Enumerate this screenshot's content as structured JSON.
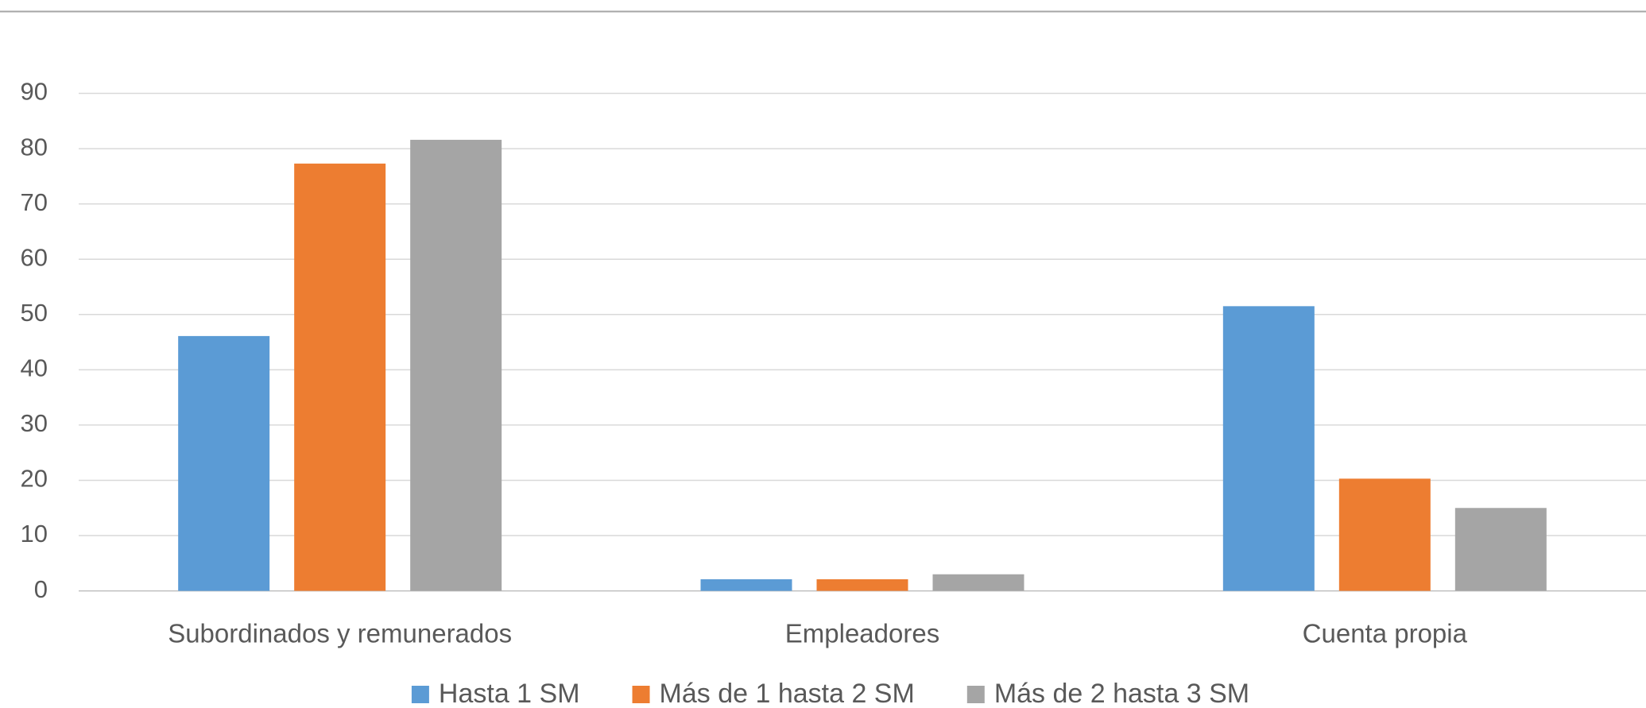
{
  "chart_data": {
    "type": "bar",
    "categories": [
      "Subordinados y remunerados",
      "Empleadores",
      "Cuenta propia"
    ],
    "series": [
      {
        "name": "Hasta 1 SM",
        "color": "#5b9bd5",
        "values": [
          46.1,
          2.1,
          51.5
        ]
      },
      {
        "name": "Más de 1 hasta 2 SM",
        "color": "#ed7d31",
        "values": [
          77.3,
          2.1,
          20.3
        ]
      },
      {
        "name": "Más de 2 hasta 3 SM",
        "color": "#a5a5a5",
        "values": [
          81.6,
          3.0,
          15.0
        ]
      }
    ],
    "ylim": [
      0,
      90
    ],
    "yticks": [
      0,
      10,
      20,
      30,
      40,
      50,
      60,
      70,
      80,
      90
    ],
    "grid": true,
    "legend": "bottom"
  }
}
